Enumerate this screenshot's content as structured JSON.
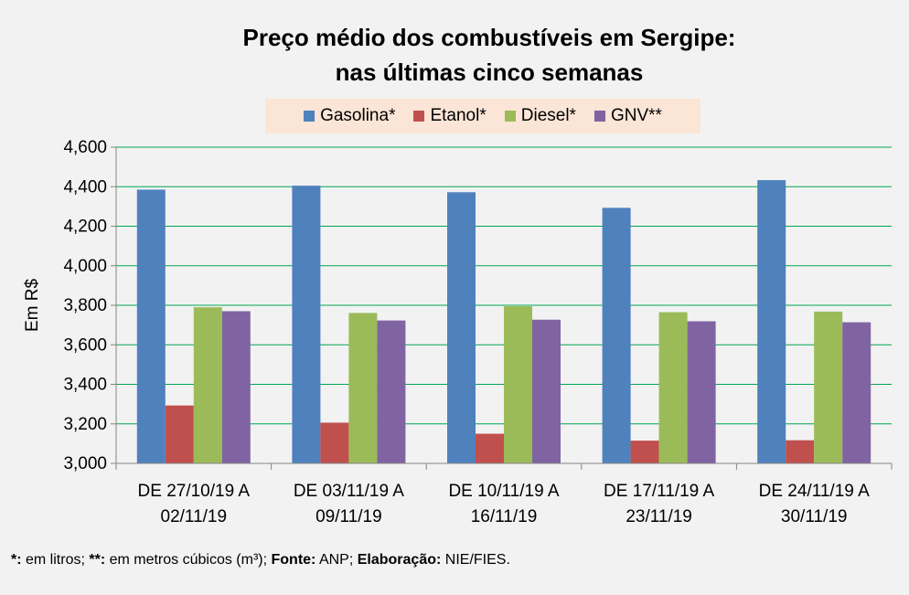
{
  "chart_data": {
    "type": "bar",
    "title_lines": [
      "Preço médio dos combustíveis em Sergipe:",
      "nas últimas cinco semanas"
    ],
    "ylabel": "Em R$",
    "xlabel": "",
    "ylim": [
      3.0,
      4.6
    ],
    "yticks": [
      3.0,
      3.2,
      3.4,
      3.6,
      3.8,
      4.0,
      4.2,
      4.4,
      4.6
    ],
    "ytick_labels": [
      "3,000",
      "3,200",
      "3,400",
      "3,600",
      "3,800",
      "4,000",
      "4,200",
      "4,400",
      "4,600"
    ],
    "grid": true,
    "legend_position": "top-center",
    "categories": [
      [
        "DE 27/10/19 A",
        "02/11/19"
      ],
      [
        "DE 03/11/19 A",
        "09/11/19"
      ],
      [
        "DE 10/11/19 A",
        "16/11/19"
      ],
      [
        "DE 17/11/19 A",
        "23/11/19"
      ],
      [
        "DE 24/11/19 A",
        "30/11/19"
      ]
    ],
    "series": [
      {
        "name": "Gasolina*",
        "color": "#4f81bd",
        "values": [
          4.385,
          4.405,
          4.372,
          4.293,
          4.433
        ]
      },
      {
        "name": "Etanol*",
        "color": "#c0504d",
        "values": [
          3.293,
          3.206,
          3.15,
          3.115,
          3.117
        ]
      },
      {
        "name": "Diesel*",
        "color": "#9bbb59",
        "values": [
          3.79,
          3.761,
          3.795,
          3.765,
          3.768
        ]
      },
      {
        "name": "GNV**",
        "color": "#8064a2",
        "values": [
          3.77,
          3.723,
          3.727,
          3.719,
          3.714
        ]
      }
    ]
  },
  "footnote": {
    "litros_mark": "*:",
    "litros_text": " em litros; ",
    "metros_mark": "**:",
    "metros_text": " em metros cúbicos (m³); ",
    "fonte_label": "Fonte:",
    "fonte_text": " ANP; ",
    "elab_label": "Elaboração:",
    "elab_text": " NIE/FIES."
  },
  "colors": {
    "gridline": "#00a651",
    "plot_background": "#f2f2f2",
    "axis": "#868686"
  }
}
